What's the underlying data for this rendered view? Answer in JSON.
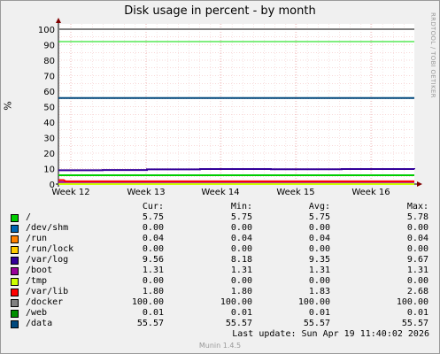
{
  "chart_data": {
    "type": "line",
    "title": "Disk usage in percent - by month",
    "ylabel": "%",
    "side_label": "RRDTOOL / TOBI OETIKER",
    "ylim": [
      0,
      100
    ],
    "yticks": [
      0,
      10,
      20,
      30,
      40,
      50,
      60,
      70,
      80,
      90,
      100
    ],
    "xticks": [
      "Week 12",
      "Week 13",
      "Week 14",
      "Week 15",
      "Week 16"
    ],
    "warning_line": 92,
    "critical_line": 100,
    "columns": [
      "Cur:",
      "Min:",
      "Avg:",
      "Max:"
    ],
    "series": [
      {
        "name": "/",
        "color": "#00cc00",
        "cur": "5.75",
        "min": "5.75",
        "avg": "5.75",
        "max": "5.78",
        "level": 5.75
      },
      {
        "name": "/dev/shm",
        "color": "#0066b3",
        "cur": "0.00",
        "min": "0.00",
        "avg": "0.00",
        "max": "0.00",
        "level": 0.0
      },
      {
        "name": "/run",
        "color": "#ff8000",
        "cur": "0.04",
        "min": "0.04",
        "avg": "0.04",
        "max": "0.04",
        "level": 0.04
      },
      {
        "name": "/run/lock",
        "color": "#ffcc00",
        "cur": "0.00",
        "min": "0.00",
        "avg": "0.00",
        "max": "0.00",
        "level": 0.0
      },
      {
        "name": "/var/log",
        "color": "#330099",
        "cur": "9.56",
        "min": "8.18",
        "avg": "9.35",
        "max": "9.67",
        "level": 9.56
      },
      {
        "name": "/boot",
        "color": "#990099",
        "cur": "1.31",
        "min": "1.31",
        "avg": "1.31",
        "max": "1.31",
        "level": 1.31
      },
      {
        "name": "/tmp",
        "color": "#ccff00",
        "cur": "0.00",
        "min": "0.00",
        "avg": "0.00",
        "max": "0.00",
        "level": 0.0
      },
      {
        "name": "/var/lib",
        "color": "#ff0000",
        "cur": "1.80",
        "min": "1.80",
        "avg": "1.83",
        "max": "2.68",
        "level": 1.8
      },
      {
        "name": "/docker",
        "color": "#808080",
        "cur": "100.00",
        "min": "100.00",
        "avg": "100.00",
        "max": "100.00",
        "level": 100.0
      },
      {
        "name": "/web",
        "color": "#008f00",
        "cur": "0.01",
        "min": "0.01",
        "avg": "0.01",
        "max": "0.01",
        "level": 0.01
      },
      {
        "name": "/data",
        "color": "#00487d",
        "cur": "55.57",
        "min": "55.57",
        "avg": "55.57",
        "max": "55.57",
        "level": 55.57
      }
    ],
    "last_update": "Last update:  Sun Apr 19 11:40:02 2026",
    "footer": "Munin 1.4.5"
  }
}
